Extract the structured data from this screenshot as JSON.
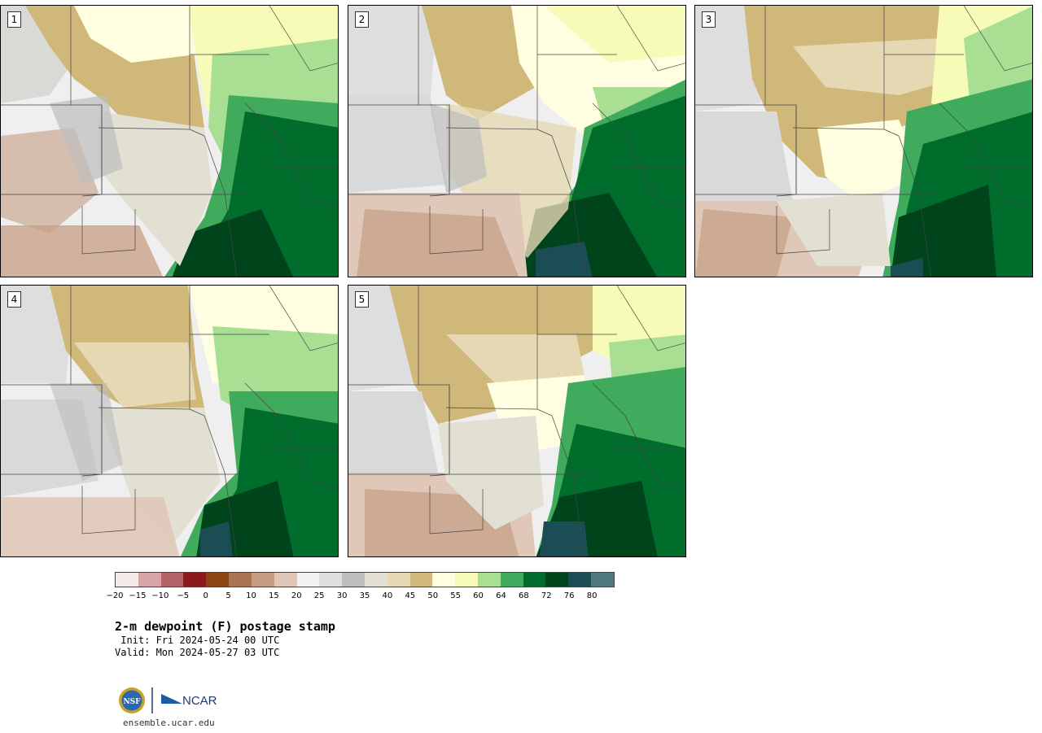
{
  "panels": [
    {
      "label": "1"
    },
    {
      "label": "2"
    },
    {
      "label": "3"
    },
    {
      "label": "4"
    },
    {
      "label": "5"
    }
  ],
  "colorbar": {
    "colors": [
      "#f5e8e8",
      "#d6a3a6",
      "#b36468",
      "#8b1a1e",
      "#8c4513",
      "#a87452",
      "#c59d83",
      "#e0c8b8",
      "#f2f2f2",
      "#dedede",
      "#bdbdbd",
      "#e1e0d2",
      "#e5d8b3",
      "#cfb87a",
      "#fffee0",
      "#f6fbb8",
      "#a8df92",
      "#41ab5d",
      "#006d2c",
      "#00441b",
      "#1b4d55",
      "#4f7b80"
    ],
    "ticks": [
      "−20",
      "−15",
      "−10",
      "−5",
      "0",
      "5",
      "10",
      "15",
      "20",
      "25",
      "30",
      "35",
      "40",
      "45",
      "50",
      "55",
      "60",
      "64",
      "68",
      "72",
      "76",
      "80"
    ]
  },
  "title": "2-m dewpoint (F) postage stamp",
  "init": " Init: Fri 2024-05-24 00 UTC",
  "valid": "Valid: Mon 2024-05-27 03 UTC",
  "logo": {
    "nsf": "NSF",
    "ncar": "NCAR"
  },
  "site": "ensemble.ucar.edu"
}
